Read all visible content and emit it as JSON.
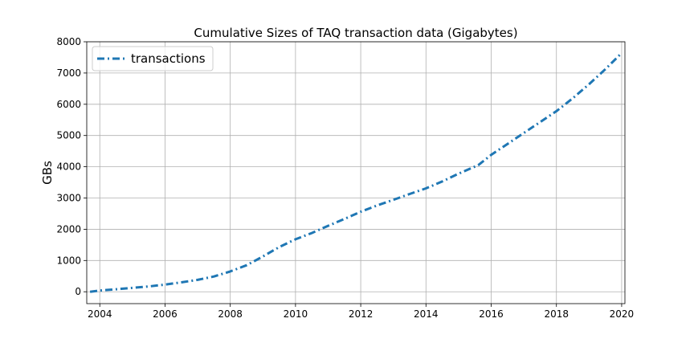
{
  "chart_data": {
    "type": "line",
    "title": "Cumulative Sizes of TAQ transaction data (Gigabytes)",
    "xlabel": "",
    "ylabel": "GBs",
    "xlim": [
      2003.6,
      2020.1
    ],
    "ylim": [
      -380,
      8000
    ],
    "xticks": [
      2004,
      2006,
      2008,
      2010,
      2012,
      2014,
      2016,
      2018,
      2020
    ],
    "yticks": [
      0,
      1000,
      2000,
      3000,
      4000,
      5000,
      6000,
      7000,
      8000
    ],
    "grid": true,
    "legend_position": "upper-left",
    "line_style": "dash-dot",
    "color": "#1f77b4",
    "series": [
      {
        "name": "transactions",
        "x": [
          2003.7,
          2004.0,
          2004.5,
          2005.0,
          2005.5,
          2006.0,
          2006.5,
          2007.0,
          2007.5,
          2008.0,
          2008.5,
          2009.0,
          2009.5,
          2010.0,
          2010.5,
          2011.0,
          2011.5,
          2012.0,
          2012.5,
          2013.0,
          2013.5,
          2014.0,
          2014.5,
          2015.0,
          2015.6,
          2016.0,
          2016.5,
          2017.0,
          2017.5,
          2018.0,
          2018.5,
          2019.0,
          2019.5,
          2020.0
        ],
        "y": [
          0,
          40,
          80,
          125,
          170,
          230,
          300,
          380,
          490,
          650,
          850,
          1130,
          1430,
          1680,
          1880,
          2110,
          2330,
          2560,
          2760,
          2940,
          3130,
          3310,
          3530,
          3780,
          4050,
          4380,
          4730,
          5080,
          5430,
          5780,
          6190,
          6640,
          7120,
          7640
        ]
      }
    ]
  }
}
